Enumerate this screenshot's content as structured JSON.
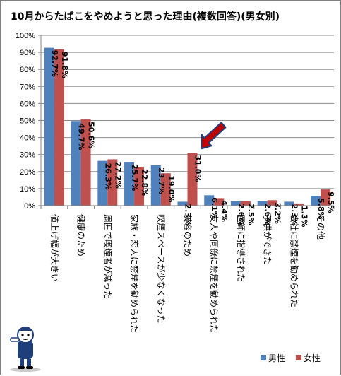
{
  "chart_data": {
    "type": "bar",
    "title": "10月からたばこをやめようと思った理由(複数回答)(男女別)",
    "xlabel": "",
    "ylabel": "",
    "ylim": [
      0,
      100
    ],
    "yticks": [
      "0%",
      "10%",
      "20%",
      "30%",
      "40%",
      "50%",
      "60%",
      "70%",
      "80%",
      "90%",
      "100%"
    ],
    "grid": true,
    "legend_position": "bottom-right",
    "categories": [
      "値上げ幅が大きい",
      "健康のため",
      "周囲で喫煙者が減った",
      "家族・恋人に禁煙を勧められた",
      "喫煙スペースが少なくなった",
      "美容のため",
      "友人や同僚に禁煙を勧められた",
      "医師に指導された",
      "子供ができた",
      "会社に禁煙を勧められた",
      "その他"
    ],
    "series": [
      {
        "name": "男性",
        "color": "#4f81bd",
        "values": [
          92.7,
          49.7,
          26.3,
          25.7,
          23.7,
          2.3,
          6.1,
          2.6,
          2.6,
          2.3,
          5.8
        ],
        "labels": [
          "92.7%",
          "49.7%",
          "26.3%",
          "25.7%",
          "23.7%",
          "2.3%",
          "6.1%",
          "2.6%",
          "2.6%",
          "2.3%",
          "5.8%"
        ]
      },
      {
        "name": "女性",
        "color": "#c0504d",
        "values": [
          91.8,
          50.6,
          27.2,
          22.8,
          19.0,
          31.0,
          4.4,
          2.5,
          3.2,
          1.3,
          9.5
        ],
        "labels": [
          "91.8%",
          "50.6%",
          "27.2%",
          "22.8%",
          "19.0%",
          "31.0%",
          "4.4%",
          "2.5%",
          "3.2%",
          "1.3%",
          "9.5%"
        ]
      }
    ],
    "annotation": {
      "type": "arrow",
      "target_category": "美容のため",
      "target_series": "女性",
      "color": "#c00000"
    }
  }
}
